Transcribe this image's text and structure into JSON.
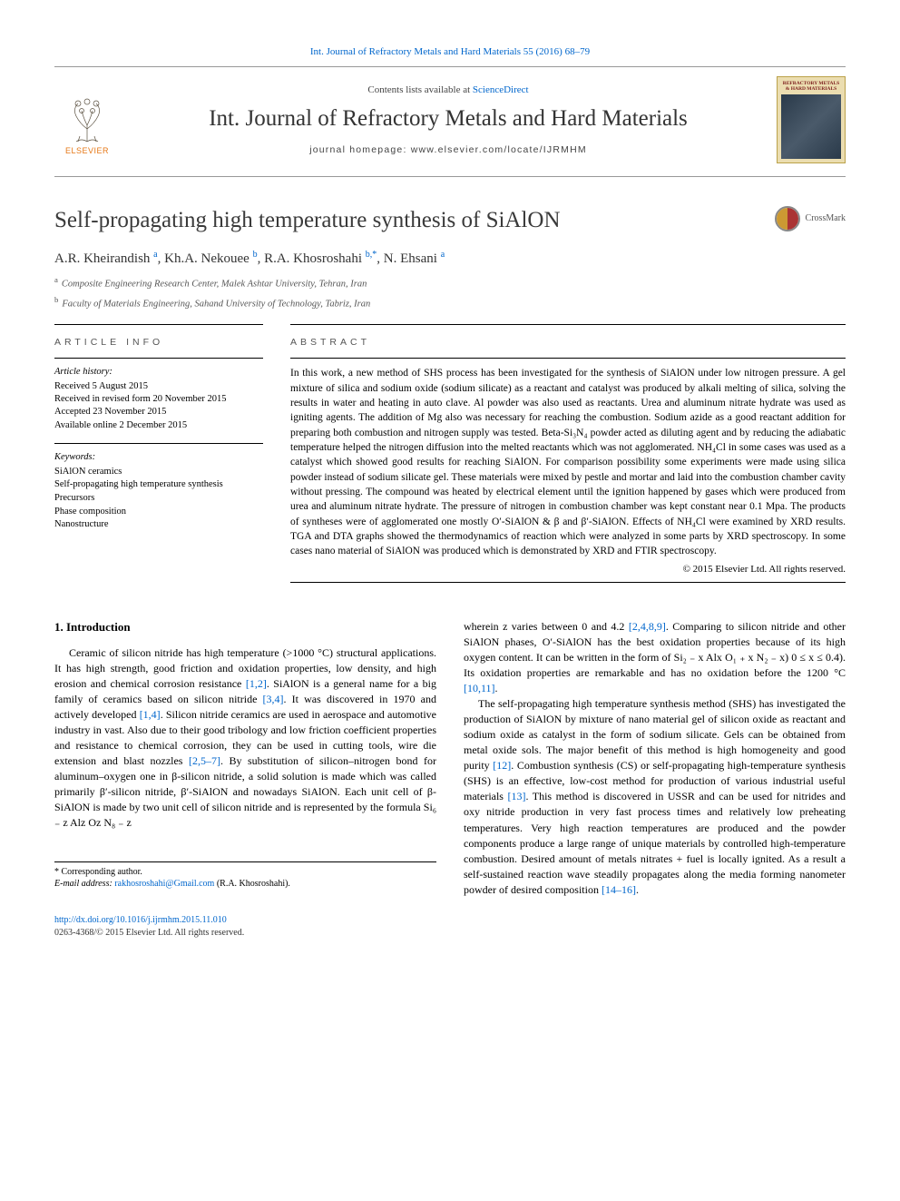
{
  "top_link": "Int. Journal of Refractory Metals and Hard Materials 55 (2016) 68–79",
  "masthead": {
    "contents_prefix": "Contents lists available at ",
    "contents_link": "ScienceDirect",
    "journal_name": "Int. Journal of Refractory Metals and Hard Materials",
    "homepage_prefix": "journal homepage: ",
    "homepage": "www.elsevier.com/locate/IJRMHM",
    "elsevier_label": "ELSEVIER",
    "cover_label": "REFRACTORY METALS & HARD MATERIALS",
    "colors": {
      "elsevier_orange": "#e67817",
      "cover_bg": "#ebddb0",
      "cover_border": "#bba24a"
    }
  },
  "crossmark_label": "CrossMark",
  "title": "Self-propagating high temperature synthesis of SiAlON",
  "authors_html": "A.R. Kheirandish ",
  "authors": [
    {
      "name": "A.R. Kheirandish",
      "aff": "a"
    },
    {
      "name": "Kh.A. Nekouee",
      "aff": "b"
    },
    {
      "name": "R.A. Khosroshahi",
      "aff": "b",
      "corr": true
    },
    {
      "name": "N. Ehsani",
      "aff": "a"
    }
  ],
  "affiliations": [
    {
      "sup": "a",
      "text": "Composite Engineering Research Center, Malek Ashtar University, Tehran, Iran"
    },
    {
      "sup": "b",
      "text": "Faculty of Materials Engineering, Sahand University of Technology, Tabriz, Iran"
    }
  ],
  "article_info_head": "ARTICLE INFO",
  "abstract_head": "ABSTRACT",
  "history_label": "Article history:",
  "history": [
    "Received 5 August 2015",
    "Received in revised form 20 November 2015",
    "Accepted 23 November 2015",
    "Available online 2 December 2015"
  ],
  "keywords_label": "Keywords:",
  "keywords": [
    "SiAlON ceramics",
    "Self-propagating high temperature synthesis",
    "Precursors",
    "Phase composition",
    "Nanostructure"
  ],
  "abstract": "In this work, a new method of SHS process has been investigated for the synthesis of SiAlON under low nitrogen pressure. A gel mixture of silica and sodium oxide (sodium silicate) as a reactant and catalyst was produced by alkali melting of silica, solving the results in water and heating in auto clave. Al powder was also used as reactants. Urea and aluminum nitrate hydrate was used as igniting agents. The addition of Mg also was necessary for reaching the combustion. Sodium azide as a good reactant addition for preparing both combustion and nitrogen supply was tested. Beta-Si₃N₄ powder acted as diluting agent and by reducing the adiabatic temperature helped the nitrogen diffusion into the melted reactants which was not agglomerated. NH₄Cl in some cases was used as a catalyst which showed good results for reaching SiAlON. For comparison possibility some experiments were made using silica powder instead of sodium silicate gel. These materials were mixed by pestle and mortar and laid into the combustion chamber cavity without pressing. The compound was heated by electrical element until the ignition happened by gases which were produced from urea and aluminum nitrate hydrate. The pressure of nitrogen in combustion chamber was kept constant near 0.1 Mpa. The products of syntheses were of agglomerated one mostly O′-SiAlON & β and β′-SiAlON. Effects of NH₄Cl were examined by XRD results. TGA and DTA graphs showed the thermodynamics of reaction which were analyzed in some parts by XRD spectroscopy. In some cases nano material of SiAlON was produced which is demonstrated by XRD and FTIR spectroscopy.",
  "copyright": "© 2015 Elsevier Ltd. All rights reserved.",
  "intro_heading": "1. Introduction",
  "intro_left": "Ceramic of silicon nitride has high temperature (>1000 °C) structural applications. It has high strength, good friction and oxidation properties, low density, and high erosion and chemical corrosion resistance [1,2]. SiAlON is a general name for a big family of ceramics based on silicon nitride [3,4]. It was discovered in 1970 and actively developed [1,4]. Silicon nitride ceramics are used in aerospace and automotive industry in vast. Also due to their good tribology and low friction coefficient properties and resistance to chemical corrosion, they can be used in cutting tools, wire die extension and blast nozzles [2,5–7]. By substitution of silicon–nitrogen bond for aluminum–oxygen one in β-silicon nitride, a solid solution is made which was called primarily β′-silicon nitride, β′-SiAlON and nowadays SiAlON. Each unit cell of β-SiAlON is made by two unit cell of silicon nitride and is represented by the formula Si₆ ₋ z Alz Oz N₈ ₋ z",
  "intro_right_p1": "wherein z varies between 0 and 4.2 [2,4,8,9]. Comparing to silicon nitride and other SiAlON phases, O′-SiAlON has the best oxidation properties because of its high oxygen content. It can be written in the form of Si₂ ₋ x Alx O₁ ₊ x N₂ ₋ x) 0 ≤ x ≤ 0.4). Its oxidation properties are remarkable and has no oxidation before the 1200 °C [10,11].",
  "intro_right_p2": "The self-propagating high temperature synthesis method (SHS) has investigated the production of SiAlON by mixture of nano material gel of silicon oxide as reactant and sodium oxide as catalyst in the form of sodium silicate. Gels can be obtained from metal oxide sols. The major benefit of this method is high homogeneity and good purity [12]. Combustion synthesis (CS) or self-propagating high-temperature synthesis (SHS) is an effective, low-cost method for production of various industrial useful materials [13]. This method is discovered in USSR and can be used for nitrides and oxy nitride production in very fast process times and relatively low preheating temperatures. Very high reaction temperatures are produced and the powder components produce a large range of unique materials by controlled high-temperature combustion. Desired amount of metals nitrates + fuel is locally ignited. As a result a self-sustained reaction wave steadily propagates along the media forming nanometer powder of desired composition [14–16].",
  "footnote_corr": "* Corresponding author.",
  "footnote_email_label": "E-mail address: ",
  "footnote_email": "rakhosroshahi@Gmail.com",
  "footnote_email_who": " (R.A. Khosroshahi).",
  "doi": "http://dx.doi.org/10.1016/j.ijrmhm.2015.11.010",
  "issn_line": "0263-4368/© 2015 Elsevier Ltd. All rights reserved.",
  "link_color": "#0066cc",
  "citation_refs_left": [
    "[1,2]",
    "[3,4]",
    "[1,4]",
    "[2,5–7]"
  ],
  "citation_refs_right": [
    "[2,4,8,9]",
    "[10,11]",
    "[12]",
    "[13]",
    "[14–16]"
  ]
}
